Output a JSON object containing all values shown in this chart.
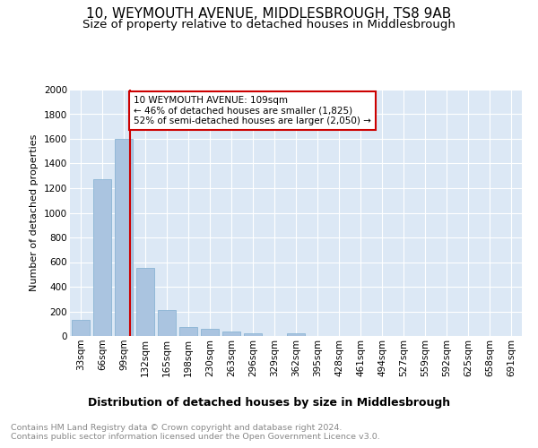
{
  "title": "10, WEYMOUTH AVENUE, MIDDLESBROUGH, TS8 9AB",
  "subtitle": "Size of property relative to detached houses in Middlesbrough",
  "xlabel": "Distribution of detached houses by size in Middlesbrough",
  "ylabel": "Number of detached properties",
  "categories": [
    "33sqm",
    "66sqm",
    "99sqm",
    "132sqm",
    "165sqm",
    "198sqm",
    "230sqm",
    "263sqm",
    "296sqm",
    "329sqm",
    "362sqm",
    "395sqm",
    "428sqm",
    "461sqm",
    "494sqm",
    "527sqm",
    "559sqm",
    "592sqm",
    "625sqm",
    "658sqm",
    "691sqm"
  ],
  "values": [
    130,
    1270,
    1600,
    550,
    210,
    75,
    60,
    35,
    20,
    0,
    20,
    0,
    0,
    0,
    0,
    0,
    0,
    0,
    0,
    0,
    0
  ],
  "bar_color": "#aac4e0",
  "bar_edge_color": "#8ab4d4",
  "annotation_text_line1": "10 WEYMOUTH AVENUE: 109sqm",
  "annotation_text_line2": "← 46% of detached houses are smaller (1,825)",
  "annotation_text_line3": "52% of semi-detached houses are larger (2,050) →",
  "annotation_box_facecolor": "#ffffff",
  "annotation_box_edgecolor": "#cc0000",
  "red_line_color": "#cc0000",
  "ylim": [
    0,
    2000
  ],
  "yticks": [
    0,
    200,
    400,
    600,
    800,
    1000,
    1200,
    1400,
    1600,
    1800,
    2000
  ],
  "plot_bg_color": "#dce8f5",
  "grid_color": "#ffffff",
  "title_fontsize": 11,
  "subtitle_fontsize": 9.5,
  "xlabel_fontsize": 9,
  "ylabel_fontsize": 8,
  "tick_fontsize": 7.5,
  "annotation_fontsize": 7.5,
  "footer_fontsize": 6.8,
  "footer_color": "#888888",
  "footer_line1": "Contains HM Land Registry data © Crown copyright and database right 2024.",
  "footer_line2": "Contains public sector information licensed under the Open Government Licence v3.0."
}
